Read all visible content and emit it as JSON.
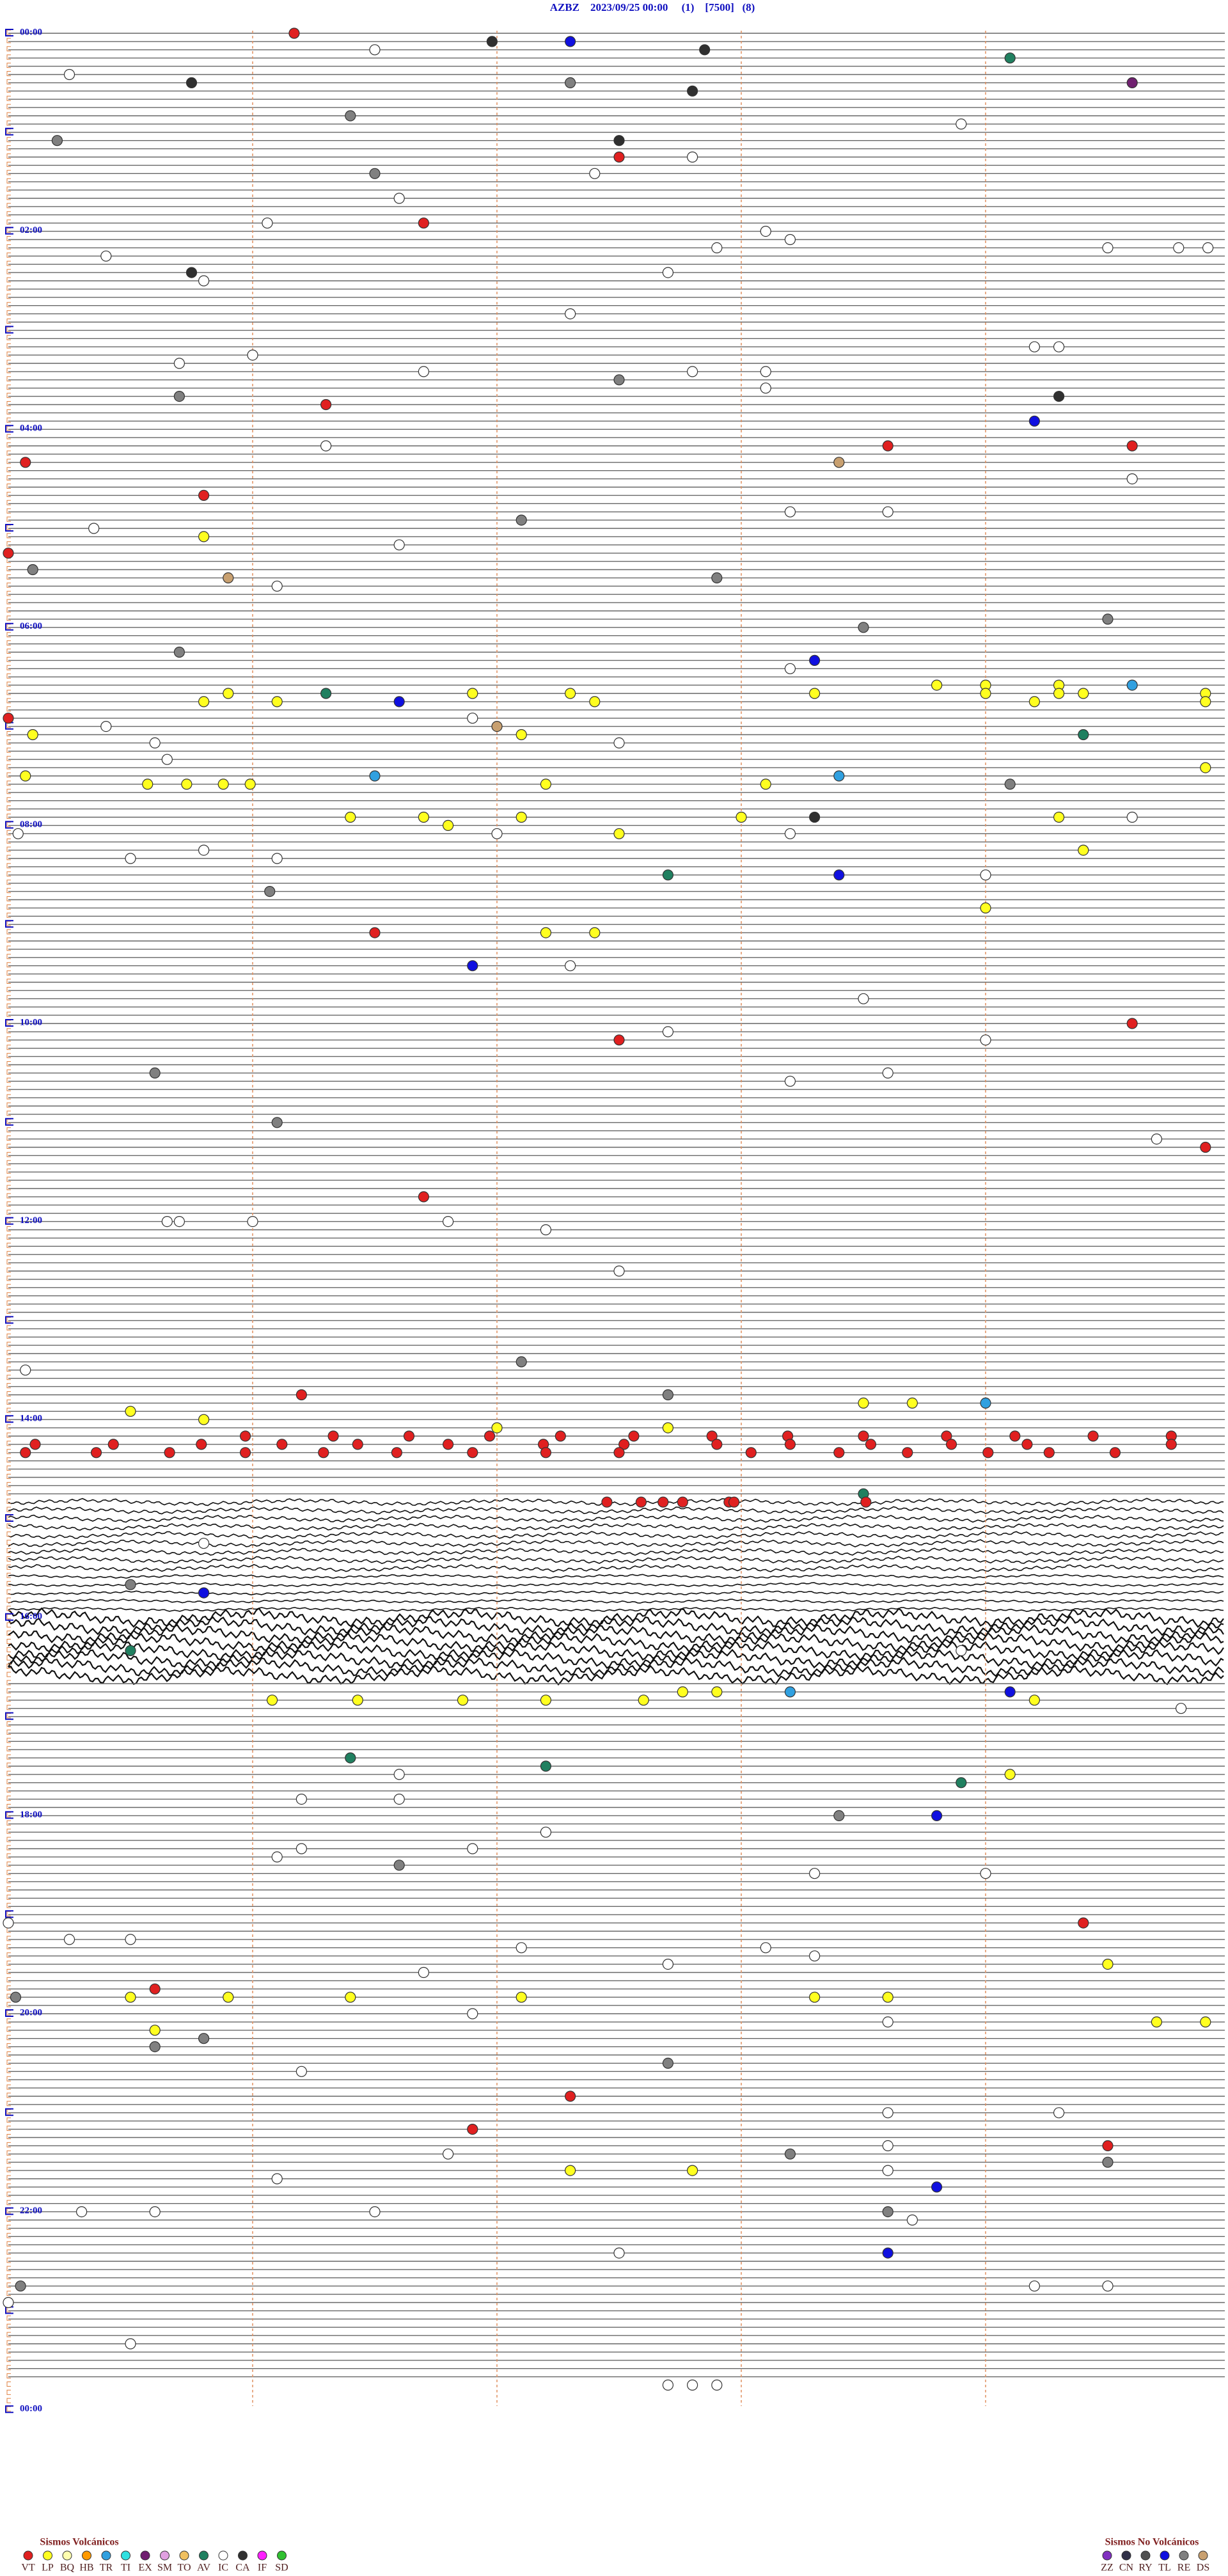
{
  "chart_data": {
    "type": "helicorder",
    "title": "AZBZ    2023/09/25 00:00     (1)    [7500]   (8)",
    "hour_labels": [
      "00:00",
      "02:00",
      "04:00",
      "06:00",
      "08:00",
      "10:00",
      "12:00",
      "14:00",
      "16:00",
      "18:00",
      "20:00",
      "22:00",
      "00:00"
    ],
    "legend_volcanic": {
      "title": "Sismos Volcánicos",
      "items": [
        {
          "code": "VT",
          "color": "#e02020"
        },
        {
          "code": "LP",
          "color": "#ffff20"
        },
        {
          "code": "BQ",
          "color": "#ffffb0"
        },
        {
          "code": "HB",
          "color": "#ff9900"
        },
        {
          "code": "TR",
          "color": "#30a0e0"
        },
        {
          "code": "TI",
          "color": "#30e0e0"
        },
        {
          "code": "EX",
          "color": "#702070"
        },
        {
          "code": "SM",
          "color": "#e0a0e0"
        },
        {
          "code": "TO",
          "color": "#f0c060"
        },
        {
          "code": "AV",
          "color": "#208060"
        },
        {
          "code": "IC",
          "color": "#ffffff"
        },
        {
          "code": "CA",
          "color": "#303030"
        },
        {
          "code": "IF",
          "color": "#ff20ff"
        },
        {
          "code": "SD",
          "color": "#30c030"
        }
      ]
    },
    "legend_non_volcanic": {
      "title": "Sismos No Volcánicos",
      "items": [
        {
          "code": "ZZ",
          "color": "#8030c0"
        },
        {
          "code": "CN",
          "color": "#303048"
        },
        {
          "code": "RY",
          "color": "#505050"
        },
        {
          "code": "TL",
          "color": "#1010e0"
        },
        {
          "code": "RE",
          "color": "#808080"
        },
        {
          "code": "DS",
          "color": "#c8a070"
        }
      ]
    },
    "events": [
      [
        1.17,
        "VT"
      ],
      [
        11.5,
        "IC"
      ],
      [
        6.98,
        "CA"
      ],
      [
        7.3,
        "TL"
      ],
      [
        12.85,
        "CA"
      ],
      [
        19.1,
        "AV"
      ],
      [
        25.25,
        "IC"
      ],
      [
        30.75,
        "CA"
      ],
      [
        32.3,
        "RE"
      ],
      [
        37.8,
        "CA"
      ],
      [
        34.6,
        "EX"
      ],
      [
        51.4,
        "RE"
      ],
      [
        58.9,
        "IC"
      ],
      [
        65.2,
        "RE"
      ],
      [
        67.5,
        "CA"
      ],
      [
        77.5,
        "VT"
      ],
      [
        77.8,
        "IC"
      ],
      [
        86.5,
        "RE"
      ],
      [
        87.4,
        "IC"
      ],
      [
        101.6,
        "IC"
      ],
      [
        116.7,
        "VT"
      ],
      [
        116.06,
        "IC"
      ],
      [
        123.1,
        "IC"
      ],
      [
        132.9,
        "IC"
      ],
      [
        128.2,
        "IC"
      ],
      [
        135.4,
        "IC"
      ],
      [
        134.5,
        "IC"
      ],
      [
        134.79,
        "IC"
      ],
      [
        134.91,
        "IC"
      ],
      [
        145.75,
        "CA"
      ],
      [
        150.8,
        "IC"
      ],
      [
        147.7,
        "IC"
      ],
      [
        172.3,
        "IC"
      ],
      [
        194.2,
        "IC"
      ],
      [
        194.3,
        "IC"
      ],
      [
        196.0,
        "IC"
      ],
      [
        200.7,
        "IC"
      ],
      [
        206.7,
        "IC"
      ],
      [
        207.8,
        "IC"
      ],
      [
        208.1,
        "IC"
      ],
      [
        212.5,
        "RE"
      ],
      [
        218.1,
        "IC"
      ],
      [
        220.7,
        "RE"
      ],
      [
        224.3,
        "CA"
      ],
      [
        226.3,
        "VT"
      ],
      [
        239.2,
        "TL"
      ],
      [
        251.3,
        "IC"
      ],
      [
        253.6,
        "VT"
      ],
      [
        254.6,
        "VT"
      ],
      [
        260.07,
        "VT"
      ],
      [
        263.4,
        "DS"
      ],
      [
        274.6,
        "IC"
      ],
      [
        280.8,
        "VT"
      ],
      [
        293.2,
        "IC"
      ],
      [
        293.6,
        "IC"
      ],
      [
        297.1,
        "RE"
      ],
      [
        300.35,
        "IC"
      ],
      [
        305.8,
        "LP"
      ],
      [
        311.6,
        "IC"
      ],
      [
        315.0,
        "VT"
      ],
      [
        325.1,
        "RE"
      ],
      [
        330.9,
        "DS"
      ],
      [
        332.9,
        "RE"
      ],
      [
        336.1,
        "IC"
      ],
      [
        359.5,
        "RE"
      ],
      [
        363.5,
        "RE"
      ],
      [
        375.7,
        "RE"
      ],
      [
        383.3,
        "TL"
      ],
      [
        388.2,
        "IC"
      ],
      [
        398.8,
        "LP"
      ],
      [
        399.0,
        "LP"
      ],
      [
        399.6,
        "TR"
      ],
      [
        399.3,
        "LP"
      ],
      [
        400.9,
        "LP"
      ],
      [
        401.3,
        "AV"
      ],
      [
        401.9,
        "LP"
      ],
      [
        402.3,
        "LP"
      ],
      [
        403.3,
        "LP"
      ],
      [
        404.0,
        "LP"
      ],
      [
        404.3,
        "LP"
      ],
      [
        404.4,
        "LP"
      ],
      [
        404.9,
        "LP"
      ],
      [
        405.8,
        "LP"
      ],
      [
        406.1,
        "LP"
      ],
      [
        406.6,
        "TL"
      ],
      [
        407.4,
        "LP"
      ],
      [
        409.2,
        "LP"
      ],
      [
        409.9,
        "LP"
      ],
      [
        415.0,
        "VT"
      ],
      [
        420.4,
        "IC"
      ],
      [
        422.0,
        "DS"
      ],
      [
        416.9,
        "IC"
      ],
      [
        425.1,
        "LP"
      ],
      [
        427.1,
        "LP"
      ],
      [
        429.4,
        "AV"
      ],
      [
        430.6,
        "IC"
      ],
      [
        432.5,
        "IC"
      ],
      [
        440.65,
        "IC"
      ],
      [
        450.07,
        "LP"
      ],
      [
        451.5,
        "TR"
      ],
      [
        453.4,
        "TR"
      ],
      [
        449.9,
        "LP"
      ],
      [
        455.57,
        "LP"
      ],
      [
        455.73,
        "LP"
      ],
      [
        455.88,
        "LP"
      ],
      [
        455.99,
        "LP"
      ],
      [
        457.2,
        "LP"
      ],
      [
        458.1,
        "LP"
      ],
      [
        459.1,
        "RE"
      ],
      [
        476.4,
        "LP"
      ],
      [
        476.7,
        "LP"
      ],
      [
        477.1,
        "LP"
      ],
      [
        478.0,
        "LP"
      ],
      [
        479.3,
        "LP"
      ],
      [
        481.8,
        "LP"
      ],
      [
        478.3,
        "CA"
      ],
      [
        479.6,
        "IC"
      ],
      [
        485.04,
        "IC"
      ],
      [
        487.0,
        "IC"
      ],
      [
        487.5,
        "LP"
      ],
      [
        488.2,
        "IC"
      ],
      [
        495.8,
        "IC"
      ],
      [
        501.1,
        "IC"
      ],
      [
        500.5,
        "IC"
      ],
      [
        499.4,
        "LP"
      ],
      [
        512.7,
        "AV"
      ],
      [
        513.4,
        "TL"
      ],
      [
        514.0,
        "IC"
      ],
      [
        521.07,
        "RE"
      ],
      [
        534.0,
        "LP"
      ],
      [
        546.5,
        "VT"
      ],
      [
        547.2,
        "LP"
      ],
      [
        547.4,
        "LP"
      ],
      [
        566.9,
        "TL"
      ],
      [
        567.3,
        "IC"
      ],
      [
        588.5,
        "IC"
      ],
      [
        604.6,
        "VT"
      ],
      [
        612.5,
        "VT"
      ],
      [
        607.7,
        "IC"
      ],
      [
        614.0,
        "IC"
      ],
      [
        630.6,
        "RE"
      ],
      [
        638.2,
        "IC"
      ],
      [
        633.6,
        "IC"
      ],
      [
        661.1,
        "RE"
      ],
      [
        674.7,
        "IC"
      ],
      [
        679.9,
        "VT"
      ],
      [
        706.7,
        "VT"
      ],
      [
        720.65,
        "IC"
      ],
      [
        720.7,
        "IC"
      ],
      [
        721.0,
        "IC"
      ],
      [
        721.8,
        "IC"
      ],
      [
        727.2,
        "IC"
      ],
      [
        752.5,
        "IC"
      ],
      [
        810.07,
        "IC"
      ],
      [
        807.1,
        "RE"
      ],
      [
        826.2,
        "VT"
      ],
      [
        827.7,
        "RE"
      ],
      [
        835.5,
        "LP"
      ],
      [
        840.8,
        "LP"
      ],
      [
        833.5,
        "LP"
      ],
      [
        833.7,
        "LP"
      ],
      [
        834.0,
        "TR"
      ],
      [
        847.0,
        "LP"
      ],
      [
        847.7,
        "LP"
      ],
      [
        850.97,
        "VT"
      ],
      [
        851.33,
        "VT"
      ],
      [
        851.64,
        "VT"
      ],
      [
        851.97,
        "VT"
      ],
      [
        852.26,
        "VT"
      ],
      [
        852.56,
        "VT"
      ],
      [
        852.88,
        "VT"
      ],
      [
        853.19,
        "VT"
      ],
      [
        853.5,
        "VT"
      ],
      [
        853.84,
        "VT"
      ],
      [
        854.12,
        "VT"
      ],
      [
        854.44,
        "VT"
      ],
      [
        854.76,
        "VT"
      ],
      [
        855.11,
        "VT"
      ],
      [
        855.43,
        "VT"
      ],
      [
        855.79,
        "VT"
      ],
      [
        856.12,
        "VT"
      ],
      [
        856.43,
        "VT"
      ],
      [
        856.8,
        "VT"
      ],
      [
        857.19,
        "VT"
      ],
      [
        857.52,
        "VT"
      ],
      [
        857.9,
        "VT"
      ],
      [
        858.2,
        "VT"
      ],
      [
        858.53,
        "VT"
      ],
      [
        858.86,
        "VT"
      ],
      [
        859.17,
        "VT"
      ],
      [
        859.76,
        "VT"
      ],
      [
        860.07,
        "VT"
      ],
      [
        860.36,
        "VT"
      ],
      [
        860.66,
        "VT"
      ],
      [
        860.97,
        "VT"
      ],
      [
        861.29,
        "VT"
      ],
      [
        861.59,
        "VT"
      ],
      [
        861.9,
        "VT"
      ],
      [
        862.2,
        "VT"
      ],
      [
        862.5,
        "VT"
      ],
      [
        863.04,
        "VT"
      ],
      [
        863.4,
        "VT"
      ],
      [
        863.68,
        "VT"
      ],
      [
        864.01,
        "VT"
      ],
      [
        864.26,
        "VT"
      ],
      [
        864.53,
        "VT"
      ],
      [
        888.5,
        "AV"
      ],
      [
        892.45,
        "VT"
      ],
      [
        892.59,
        "VT"
      ],
      [
        892.68,
        "VT"
      ],
      [
        892.76,
        "VT"
      ],
      [
        892.95,
        "VT"
      ],
      [
        892.97,
        "VT"
      ],
      [
        893.51,
        "VT"
      ],
      [
        915.8,
        "IC"
      ],
      [
        940.5,
        "RE"
      ],
      [
        945.8,
        "TL"
      ],
      [
        980.5,
        "AV"
      ],
      [
        983.9,
        "IC"
      ],
      [
        1011.08,
        "LP"
      ],
      [
        1011.43,
        "LP"
      ],
      [
        1011.86,
        "LP"
      ],
      [
        1012.2,
        "LP"
      ],
      [
        1012.6,
        "LP"
      ],
      [
        1007.76,
        "LP"
      ],
      [
        1007.9,
        "LP"
      ],
      [
        1008.2,
        "TR"
      ],
      [
        1009.1,
        "TL"
      ],
      [
        1014.2,
        "LP"
      ],
      [
        1019.8,
        "IC"
      ],
      [
        1046.4,
        "AV"
      ],
      [
        1052.2,
        "AV"
      ],
      [
        1056.6,
        "IC"
      ],
      [
        1063.9,
        "AV"
      ],
      [
        1059.1,
        "LP"
      ],
      [
        1071.2,
        "IC"
      ],
      [
        1071.6,
        "IC"
      ],
      [
        1083.4,
        "RE"
      ],
      [
        1083.8,
        "TL"
      ],
      [
        1092.2,
        "IC"
      ],
      [
        1106.1,
        "IC"
      ],
      [
        1101.2,
        "IC"
      ],
      [
        1101.9,
        "IC"
      ],
      [
        1111.6,
        "RE"
      ],
      [
        1118.3,
        "IC"
      ],
      [
        1119.0,
        "IC"
      ],
      [
        1145.0,
        "IC"
      ],
      [
        1149.4,
        "VT"
      ],
      [
        1155.25,
        "IC"
      ],
      [
        1155.5,
        "IC"
      ],
      [
        1162.1,
        "IC"
      ],
      [
        1163.1,
        "IC"
      ],
      [
        1168.3,
        "IC"
      ],
      [
        1172.7,
        "IC"
      ],
      [
        1176.7,
        "IC"
      ],
      [
        1174.5,
        "LP"
      ],
      [
        1190.03,
        "RE"
      ],
      [
        1185.6,
        "VT"
      ],
      [
        1190.5,
        "LP"
      ],
      [
        1190.9,
        "LP"
      ],
      [
        1191.4,
        "LP"
      ],
      [
        1192.1,
        "LP"
      ],
      [
        1193.3,
        "LP"
      ],
      [
        1193.6,
        "LP"
      ],
      [
        1201.9,
        "IC"
      ],
      [
        1208.6,
        "IC"
      ],
      [
        1209.7,
        "LP"
      ],
      [
        1209.9,
        "LP"
      ],
      [
        1210.6,
        "LP"
      ],
      [
        1215.8,
        "RE"
      ],
      [
        1220.6,
        "RE"
      ],
      [
        1236.2,
        "IC"
      ],
      [
        1232.7,
        "RE"
      ],
      [
        1252.3,
        "VT"
      ],
      [
        1263.6,
        "IC"
      ],
      [
        1264.3,
        "IC"
      ],
      [
        1271.9,
        "VT"
      ],
      [
        1283.6,
        "IC"
      ],
      [
        1284.5,
        "VT"
      ],
      [
        1286.8,
        "IC"
      ],
      [
        1288.2,
        "RE"
      ],
      [
        1294.5,
        "RE"
      ],
      [
        1297.3,
        "LP"
      ],
      [
        1297.8,
        "LP"
      ],
      [
        1298.6,
        "IC"
      ],
      [
        1301.1,
        "IC"
      ],
      [
        1308.8,
        "TL"
      ],
      [
        1320.3,
        "IC"
      ],
      [
        1320.6,
        "IC"
      ],
      [
        1321.5,
        "IC"
      ],
      [
        1323.6,
        "RE"
      ],
      [
        1328.7,
        "IC"
      ],
      [
        1348.6,
        "TL"
      ],
      [
        1347.5,
        "IC"
      ],
      [
        1365.05,
        "RE"
      ],
      [
        1369.2,
        "IC"
      ],
      [
        1369.5,
        "IC"
      ],
      [
        1375.0,
        "IC"
      ],
      [
        1400.5,
        "IC"
      ],
      [
        1427.7,
        "IC"
      ],
      [
        1427.8,
        "IC"
      ],
      [
        1427.9,
        "IC"
      ]
    ]
  }
}
